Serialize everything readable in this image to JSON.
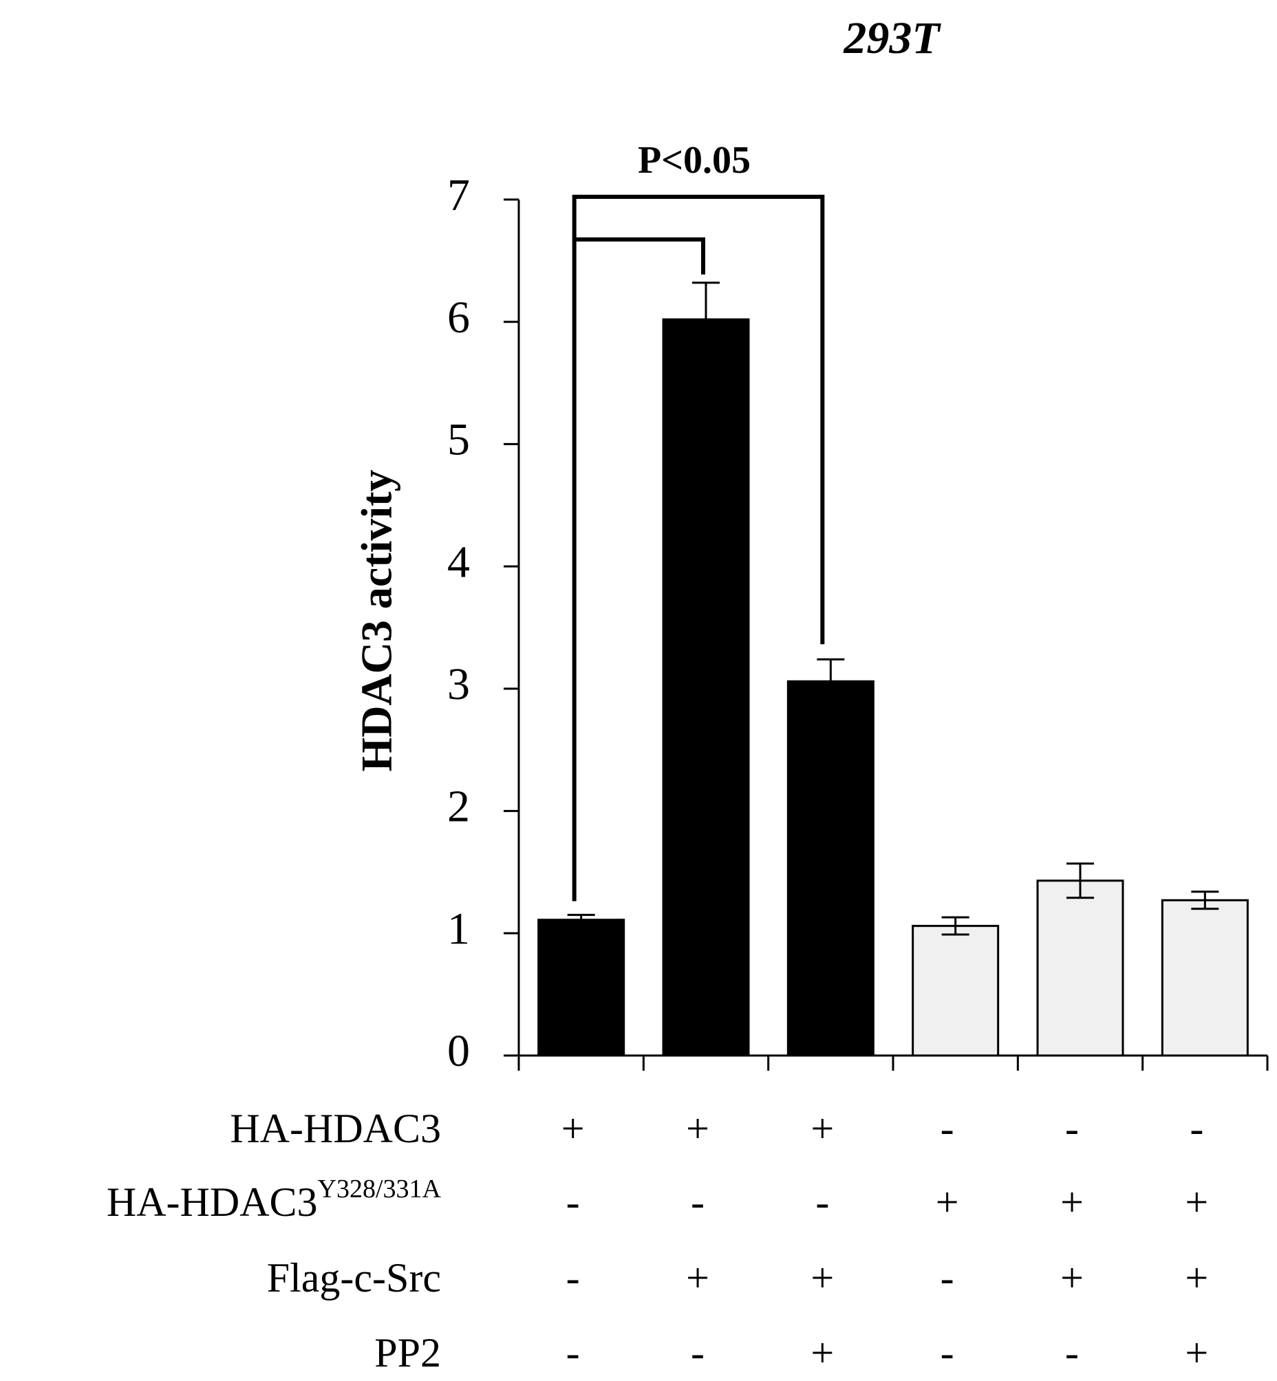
{
  "chart_data": {
    "type": "bar",
    "title": "293T",
    "y_label": "HDAC3 activity",
    "categories": [
      null,
      null,
      null,
      null,
      null,
      null
    ],
    "values": [
      1.11,
      6.02,
      3.06,
      1.06,
      1.43,
      1.27
    ],
    "errors": [
      0.04,
      0.3,
      0.18,
      0.07,
      0.14,
      0.07
    ],
    "colors": [
      "#000000",
      "#000000",
      "#000000",
      "#f0f0f0",
      "#f0f0f0",
      "#f0f0f0"
    ],
    "ylim": [
      0,
      7
    ],
    "yticks": [
      0,
      1,
      2,
      3,
      4,
      5,
      6,
      7
    ],
    "annotation": "P<0.05",
    "conditions": [
      {
        "label": "HA-HDAC3",
        "signs": [
          "+",
          "+",
          "+",
          "-",
          "-",
          "-"
        ]
      },
      {
        "label": "HA-HDAC3",
        "superscript": "Y328/331A",
        "signs": [
          "-",
          "-",
          "-",
          "+",
          "+",
          "+"
        ]
      },
      {
        "label": "Flag-c-Src",
        "signs": [
          "-",
          "+",
          "+",
          "-",
          "+",
          "+"
        ]
      },
      {
        "label": "PP2",
        "signs": [
          "-",
          "-",
          "+",
          "-",
          "-",
          "+"
        ]
      }
    ]
  }
}
